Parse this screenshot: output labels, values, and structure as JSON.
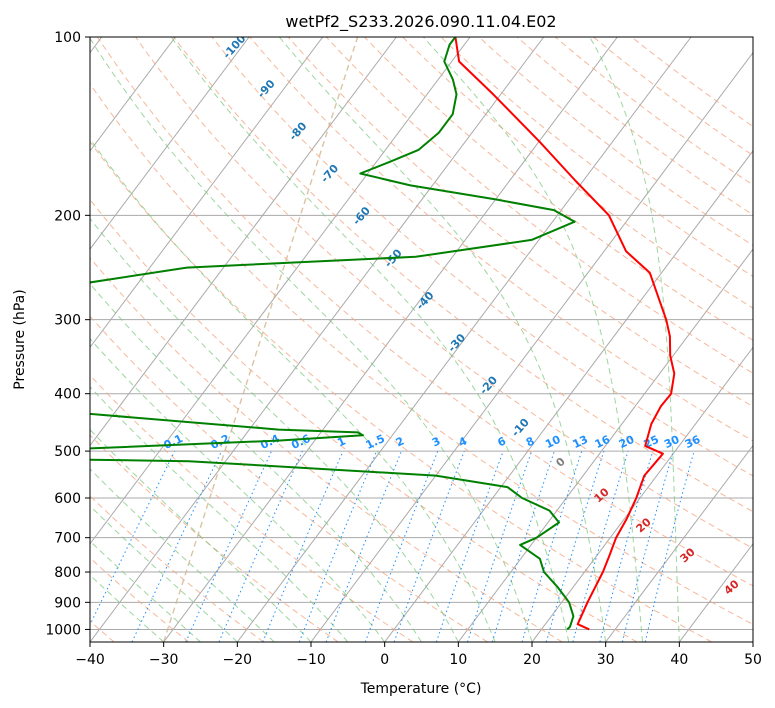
{
  "chart_data": {
    "type": "line",
    "subtype": "skew-T log-p diagram",
    "title": "wetPf2_S233.2026.090.11.04.E02",
    "xlabel": "Temperature (°C)",
    "ylabel": "Pressure (hPa)",
    "xlim": [
      -40,
      50
    ],
    "ylim": [
      1050,
      100
    ],
    "yscale": "log",
    "x_ticks": [
      -40,
      -30,
      -20,
      -10,
      0,
      10,
      20,
      30,
      40,
      50
    ],
    "x_tick_labels": [
      "−40",
      "−30",
      "−20",
      "−10",
      "0",
      "10",
      "20",
      "30",
      "40",
      "50"
    ],
    "y_ticks": [
      1000,
      900,
      800,
      700,
      600,
      500,
      400,
      300,
      200,
      100
    ],
    "y_tick_labels": [
      "1000",
      "900",
      "800",
      "700",
      "600",
      "500",
      "400",
      "300",
      "200",
      "100"
    ],
    "grid": true,
    "colors": {
      "temperature": "#ff0000",
      "dewpoint": "#008000",
      "isotherm": "#aaaaaa",
      "dry_adiabat": "#f4a582",
      "moist_adiabat": "#74c476",
      "mixing_ratio": "#1e90ff",
      "dry_adiabat_label": "#1f77b4",
      "moist_adiabat_label": "#d62728",
      "ice_line": "#d2b48c"
    },
    "series": [
      {
        "type": "temperature",
        "points": [
          [
            26.5,
            1000
          ],
          [
            24.4,
            980
          ],
          [
            23.5,
            900
          ],
          [
            22.5,
            800
          ],
          [
            21.7,
            750
          ],
          [
            20.8,
            700
          ],
          [
            20.3,
            650
          ],
          [
            19.5,
            600
          ],
          [
            18.3,
            550
          ],
          [
            18.5,
            520
          ],
          [
            18.6,
            505
          ],
          [
            15.4,
            490
          ],
          [
            14.0,
            450
          ],
          [
            13.5,
            420
          ],
          [
            13.6,
            400
          ],
          [
            12.0,
            370
          ],
          [
            9.6,
            345
          ],
          [
            7.6,
            320
          ],
          [
            5.4,
            300
          ],
          [
            -1.6,
            250
          ],
          [
            -7.0,
            230
          ],
          [
            -13.0,
            200
          ],
          [
            -21.0,
            175
          ],
          [
            -30.0,
            150
          ],
          [
            -41.0,
            125
          ],
          [
            -49.0,
            110
          ],
          [
            -52.0,
            100
          ]
        ]
      },
      {
        "type": "dewpoint",
        "points": [
          [
            23.5,
            1000
          ],
          [
            23.6,
            990
          ],
          [
            23.0,
            950
          ],
          [
            21.0,
            900
          ],
          [
            18.0,
            850
          ],
          [
            14.5,
            800
          ],
          [
            12.6,
            760
          ],
          [
            8.5,
            720
          ],
          [
            10.0,
            700
          ],
          [
            11.5,
            660
          ],
          [
            9.0,
            630
          ],
          [
            4.0,
            600
          ],
          [
            0.9,
            575
          ],
          [
            -10.0,
            550
          ],
          [
            -45.0,
            520
          ],
          [
            -90.0,
            510
          ],
          [
            -90.0,
            500
          ],
          [
            -60.0,
            495
          ],
          [
            -35.0,
            480
          ],
          [
            -24.0,
            470
          ],
          [
            -25.0,
            465
          ],
          [
            -36.0,
            460
          ],
          [
            -66.0,
            430
          ],
          [
            -78.0,
            400
          ],
          [
            -81.0,
            370
          ],
          [
            -85.0,
            350
          ],
          [
            -93.0,
            330
          ],
          [
            -96.0,
            305
          ],
          [
            -93.0,
            290
          ],
          [
            -83.0,
            268
          ],
          [
            -65.0,
            245
          ],
          [
            -35.0,
            235
          ],
          [
            -21.0,
            220
          ],
          [
            -17.0,
            205
          ],
          [
            -21.0,
            196
          ],
          [
            -30.0,
            188
          ],
          [
            -43.0,
            178
          ],
          [
            -51.0,
            170
          ],
          [
            -48.0,
            162
          ],
          [
            -45.5,
            155
          ],
          [
            -44.5,
            145
          ],
          [
            -44.5,
            135
          ],
          [
            -46.0,
            125
          ],
          [
            -48.0,
            118
          ],
          [
            -51.0,
            110
          ],
          [
            -52.0,
            103
          ],
          [
            -52.0,
            100
          ]
        ]
      }
    ],
    "mixing_ratio_labels": [
      "0.1",
      "0.2",
      "0.4",
      "0.6",
      "1",
      "1.5",
      "2",
      "3",
      "4",
      "6",
      "8",
      "10",
      "13",
      "16",
      "20",
      "25",
      "30",
      "36"
    ],
    "dry_adiabat_labels": [
      "-100",
      "-90",
      "-80",
      "-70",
      "-60",
      "-50",
      "-40",
      "-30",
      "-20",
      "-10"
    ],
    "moist_adiabat_labels": [
      "0",
      "10",
      "20",
      "30",
      "40"
    ]
  }
}
